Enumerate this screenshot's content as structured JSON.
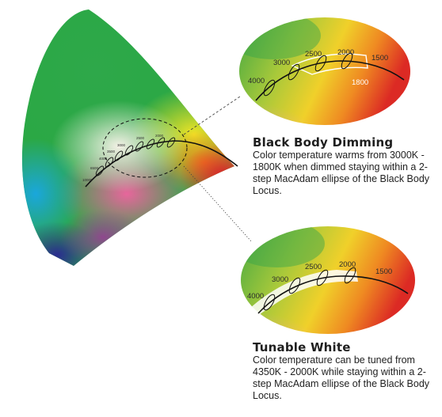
{
  "diagram": {
    "colors": {
      "locus": "#111111",
      "tick_text_dark": "#2b2b2b",
      "tick_text_light": "#ffffff",
      "range_band": "#ffffff"
    },
    "small_chart_labels": [
      "10000",
      "6500",
      "4000",
      "3500",
      "3000",
      "2500",
      "2000"
    ],
    "panels": [
      {
        "id": "black-body-dimming",
        "tick_labels": [
          "4000",
          "3000",
          "2500",
          "2000",
          "1500",
          "1800"
        ],
        "title": "Black Body Dimming",
        "description": "Color temperature warms from 3000K - 1800K when dimmed staying within a 2-step MacAdam ellipse of the Black Body Locus."
      },
      {
        "id": "tunable-white",
        "tick_labels": [
          "4000",
          "3000",
          "2500",
          "2000",
          "1500"
        ],
        "title": "Tunable White",
        "description": "Color temperature can be tuned from 4350K - 2000K while staying within a 2-step MacAdam ellipse of the Black Body Locus."
      }
    ]
  }
}
